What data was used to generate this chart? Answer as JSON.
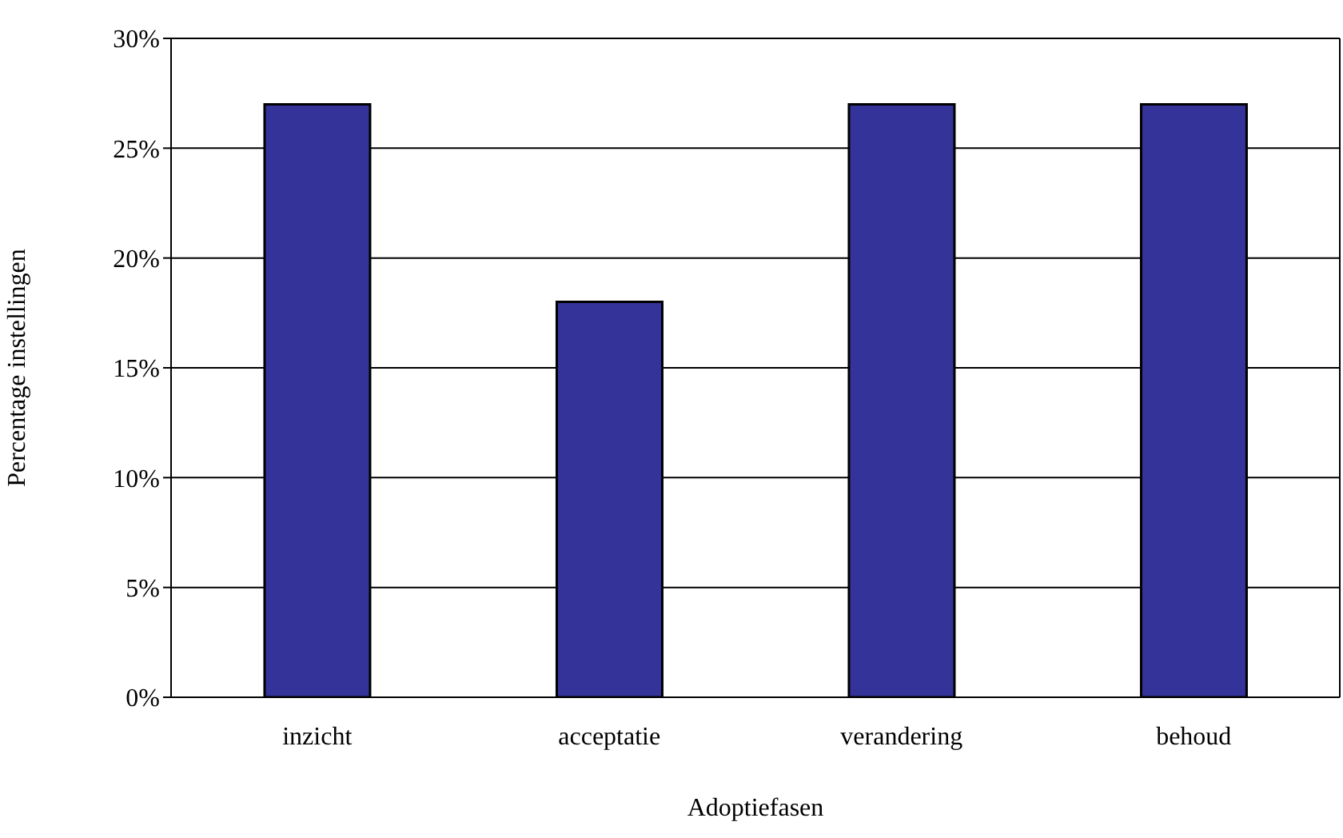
{
  "chart_data": {
    "type": "bar",
    "xlabel": "Adoptiefasen",
    "ylabel": "Percentage instellingen",
    "categories": [
      "inzicht",
      "acceptatie",
      "verandering",
      "behoud"
    ],
    "values": [
      27,
      18,
      27,
      27
    ],
    "color": "#333399",
    "ylim": [
      0,
      30
    ],
    "yticks": [
      {
        "value": 0,
        "label": "0%"
      },
      {
        "value": 5,
        "label": "5%"
      },
      {
        "value": 10,
        "label": "10%"
      },
      {
        "value": 15,
        "label": "15%"
      },
      {
        "value": 20,
        "label": "20%"
      },
      {
        "value": 25,
        "label": "25%"
      },
      {
        "value": 30,
        "label": "30%"
      }
    ],
    "grid": "y"
  }
}
